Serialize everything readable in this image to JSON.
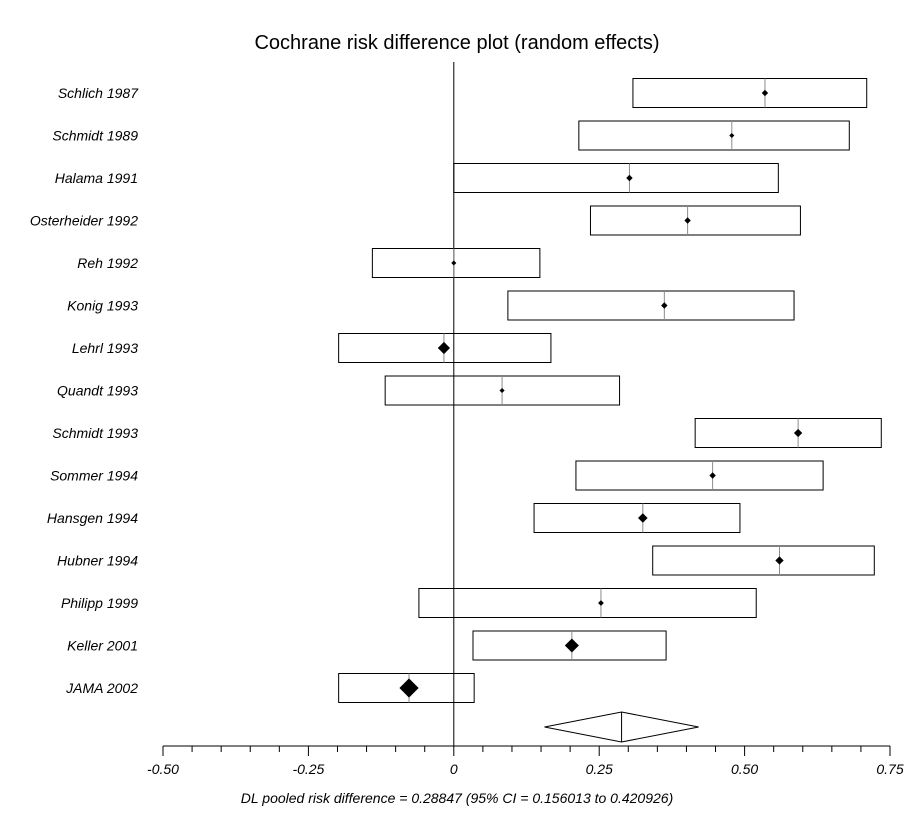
{
  "chart_data": {
    "type": "forest",
    "title": "Cochrane risk difference plot (random effects)",
    "xlabel": "DL pooled risk difference = 0.28847  (95% CI = 0.156013 to 0.420926)",
    "xlim": [
      -0.5,
      0.75
    ],
    "xticks": [
      {
        "value": -0.5,
        "label": "-0.50"
      },
      {
        "value": -0.25,
        "label": "-0.25"
      },
      {
        "value": 0,
        "label": "0"
      },
      {
        "value": 0.25,
        "label": "0.25"
      },
      {
        "value": 0.5,
        "label": "0.50"
      },
      {
        "value": 0.75,
        "label": "0.75"
      }
    ],
    "reference_line": 0,
    "studies": [
      {
        "label": "Schlich 1987",
        "estimate": 0.535,
        "lower": 0.308,
        "upper": 0.71,
        "weight": 1.0
      },
      {
        "label": "Schmidt 1989",
        "estimate": 0.478,
        "lower": 0.215,
        "upper": 0.68,
        "weight": 0.8
      },
      {
        "label": "Halama 1991",
        "estimate": 0.302,
        "lower": 0.0,
        "upper": 0.558,
        "weight": 1.0
      },
      {
        "label": "Osterheider 1992",
        "estimate": 0.402,
        "lower": 0.235,
        "upper": 0.596,
        "weight": 1.0
      },
      {
        "label": "Reh 1992",
        "estimate": 0.0,
        "lower": -0.14,
        "upper": 0.148,
        "weight": 0.8
      },
      {
        "label": "Konig 1993",
        "estimate": 0.362,
        "lower": 0.093,
        "upper": 0.585,
        "weight": 1.0
      },
      {
        "label": "Lehrl 1993",
        "estimate": -0.017,
        "lower": -0.198,
        "upper": 0.167,
        "weight": 1.9
      },
      {
        "label": "Quandt 1993",
        "estimate": 0.083,
        "lower": -0.118,
        "upper": 0.285,
        "weight": 0.8
      },
      {
        "label": "Schmidt 1993",
        "estimate": 0.592,
        "lower": 0.415,
        "upper": 0.735,
        "weight": 1.3
      },
      {
        "label": "Sommer 1994",
        "estimate": 0.445,
        "lower": 0.21,
        "upper": 0.635,
        "weight": 1.0
      },
      {
        "label": "Hansgen 1994",
        "estimate": 0.325,
        "lower": 0.138,
        "upper": 0.492,
        "weight": 1.5
      },
      {
        "label": "Hubner 1994",
        "estimate": 0.56,
        "lower": 0.342,
        "upper": 0.723,
        "weight": 1.3
      },
      {
        "label": "Philipp 1999",
        "estimate": 0.253,
        "lower": -0.06,
        "upper": 0.52,
        "weight": 0.9
      },
      {
        "label": "Keller 2001",
        "estimate": 0.203,
        "lower": 0.033,
        "upper": 0.365,
        "weight": 2.2
      },
      {
        "label": "JAMA 2002",
        "estimate": -0.077,
        "lower": -0.198,
        "upper": 0.035,
        "weight": 3.0
      }
    ],
    "pooled": {
      "estimate": 0.28847,
      "lower": 0.156013,
      "upper": 0.420926
    },
    "grid": false
  }
}
